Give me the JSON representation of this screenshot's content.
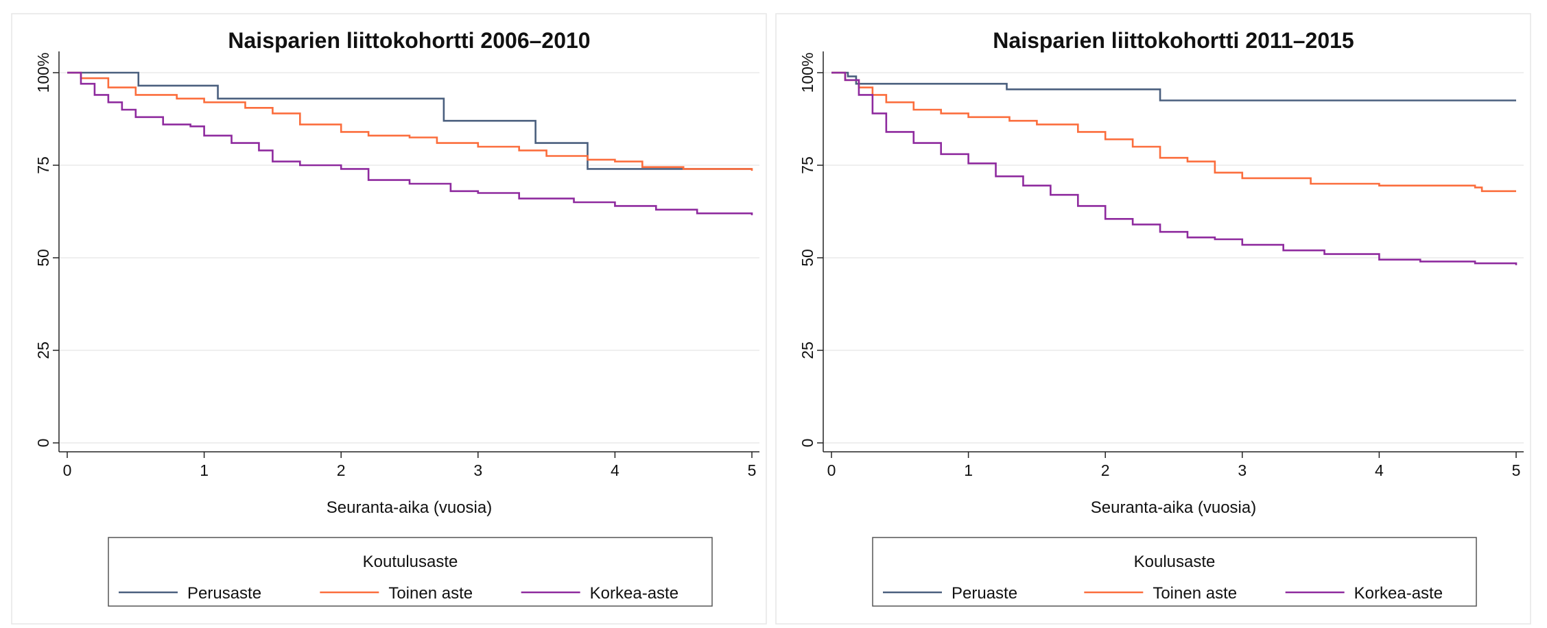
{
  "chart_data": [
    {
      "type": "step",
      "title": "Naisparien liittokohortti 2006–2010",
      "x_label": "Seuranta-aika (vuosia)",
      "legend_title": "Koutulusaste",
      "xlim": [
        0,
        5
      ],
      "xticks": [
        0,
        1,
        2,
        3,
        4,
        5
      ],
      "ylim": [
        0,
        100
      ],
      "yticks": [
        0,
        25,
        50,
        75,
        {
          "value": 100,
          "label": "100%"
        }
      ],
      "grid": true,
      "legend": "bottom",
      "series": [
        {
          "name": "Perusaste",
          "color": "#4a5f7e",
          "x": [
            0,
            0.52,
            1.1,
            2.75,
            3.42,
            3.8,
            5
          ],
          "values": [
            100,
            96.5,
            93,
            87,
            81,
            74,
            74
          ]
        },
        {
          "name": "Toinen aste",
          "color": "#fb6d3c",
          "x": [
            0,
            0.1,
            0.3,
            0.5,
            0.8,
            1.0,
            1.3,
            1.5,
            1.7,
            2.0,
            2.2,
            2.5,
            2.7,
            3.0,
            3.3,
            3.5,
            3.8,
            4.0,
            4.2,
            4.5,
            5
          ],
          "values": [
            100,
            98.5,
            96,
            94,
            93,
            92,
            90.5,
            89,
            86,
            84,
            83,
            82.5,
            81,
            80,
            79,
            77.5,
            76.5,
            76,
            74.5,
            74,
            73.5
          ]
        },
        {
          "name": "Korkea-aste",
          "color": "#8e2a9e",
          "x": [
            0,
            0.1,
            0.2,
            0.3,
            0.4,
            0.5,
            0.7,
            0.9,
            1.0,
            1.2,
            1.4,
            1.5,
            1.7,
            2.0,
            2.2,
            2.5,
            2.8,
            3.0,
            3.3,
            3.7,
            4.0,
            4.3,
            4.6,
            5
          ],
          "values": [
            100,
            97,
            94,
            92,
            90,
            88,
            86,
            85.5,
            83,
            81,
            79,
            76,
            75,
            74,
            71,
            70,
            68,
            67.5,
            66,
            65,
            64,
            63,
            62,
            61.5
          ]
        }
      ]
    },
    {
      "type": "step",
      "title": "Naisparien liittokohortti 2011–2015",
      "x_label": "Seuranta-aika (vuosia)",
      "legend_title": "Koulusaste",
      "xlim": [
        0,
        5
      ],
      "xticks": [
        0,
        1,
        2,
        3,
        4,
        5
      ],
      "ylim": [
        0,
        100
      ],
      "yticks": [
        0,
        25,
        50,
        75,
        {
          "value": 100,
          "label": "100%"
        }
      ],
      "grid": true,
      "legend": "bottom",
      "series": [
        {
          "name": "Peruaste",
          "color": "#4a5f7e",
          "x": [
            0,
            0.12,
            0.18,
            1.28,
            2.4,
            5
          ],
          "values": [
            100,
            99,
            97,
            95.5,
            92.5,
            92.5
          ]
        },
        {
          "name": "Toinen aste",
          "color": "#fb6d3c",
          "x": [
            0,
            0.1,
            0.2,
            0.3,
            0.4,
            0.6,
            0.8,
            1.0,
            1.3,
            1.5,
            1.8,
            2.0,
            2.2,
            2.4,
            2.6,
            2.8,
            3.0,
            3.5,
            4.0,
            4.3,
            4.7,
            4.75,
            5
          ],
          "values": [
            100,
            98,
            96,
            94,
            92,
            90,
            89,
            88,
            87,
            86,
            84,
            82,
            80,
            77,
            76,
            73,
            71.5,
            70,
            69.5,
            69.5,
            69,
            68,
            68
          ]
        },
        {
          "name": "Korkea-aste",
          "color": "#8e2a9e",
          "x": [
            0,
            0.1,
            0.2,
            0.3,
            0.4,
            0.6,
            0.8,
            1.0,
            1.2,
            1.4,
            1.6,
            1.8,
            2.0,
            2.2,
            2.4,
            2.6,
            2.8,
            3.0,
            3.3,
            3.6,
            4.0,
            4.3,
            4.7,
            5
          ],
          "values": [
            100,
            98,
            94,
            89,
            84,
            81,
            78,
            75.5,
            72,
            69.5,
            67,
            64,
            60.5,
            59,
            57,
            55.5,
            55,
            53.5,
            52,
            51,
            49.5,
            49,
            48.5,
            48
          ]
        }
      ]
    }
  ]
}
